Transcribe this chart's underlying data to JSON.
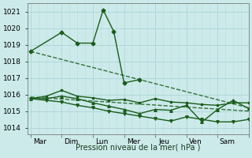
{
  "xlabel": "Pression niveau de la mer( hPa )",
  "background_color": "#cceaea",
  "grid_color": "#b0d8d8",
  "line_color": "#1a5c1a",
  "ylim": [
    1013.6,
    1021.5
  ],
  "xlim": [
    -0.1,
    7.0
  ],
  "day_labels": [
    "Mar",
    "Dim",
    "Lun",
    "Mer",
    "Jeu",
    "Ven",
    "Sam"
  ],
  "day_positions": [
    0.3,
    1.3,
    2.3,
    3.3,
    4.3,
    5.3,
    6.3
  ],
  "day_vlines": [
    0.0,
    1.0,
    2.0,
    3.0,
    4.0,
    5.0,
    6.0,
    7.0
  ],
  "yticks": [
    1014,
    1015,
    1016,
    1017,
    1018,
    1019,
    1020,
    1021
  ],
  "series1_x": [
    0.0,
    1.0,
    1.5,
    2.0,
    2.33,
    2.67,
    3.0,
    3.5
  ],
  "series1_y": [
    1018.6,
    1019.75,
    1019.1,
    1019.1,
    1021.1,
    1019.8,
    1016.7,
    1016.9
  ],
  "trend1_x": [
    0.0,
    7.0
  ],
  "trend1_y": [
    1018.6,
    1015.2
  ],
  "series2_x": [
    0.0,
    0.5,
    1.0,
    1.5,
    2.0,
    2.5,
    3.0,
    3.5,
    4.0,
    4.5,
    5.0,
    5.5,
    6.0,
    6.5,
    7.0
  ],
  "series2_y": [
    1015.75,
    1015.9,
    1016.25,
    1015.9,
    1015.8,
    1015.65,
    1015.7,
    1015.5,
    1015.75,
    1015.55,
    1015.5,
    1015.4,
    1015.35,
    1015.5,
    1015.5
  ],
  "trend2_x": [
    0.0,
    7.0
  ],
  "trend2_y": [
    1015.85,
    1015.0
  ],
  "series3_x": [
    0.0,
    0.5,
    1.0,
    1.5,
    2.0,
    2.5,
    3.0,
    3.5,
    4.0,
    4.5,
    5.0,
    5.5,
    6.0,
    6.5,
    7.0
  ],
  "series3_y": [
    1015.75,
    1015.65,
    1015.55,
    1015.35,
    1015.2,
    1015.0,
    1014.85,
    1014.7,
    1014.55,
    1014.4,
    1014.65,
    1014.5,
    1014.35,
    1014.35,
    1014.5
  ],
  "series4_x": [
    0.0,
    0.5,
    1.0,
    1.5,
    2.0,
    2.5,
    3.0,
    3.5,
    4.0,
    4.5,
    5.0,
    5.5,
    6.0,
    6.5,
    7.0
  ],
  "series4_y": [
    1015.75,
    1015.75,
    1015.9,
    1015.75,
    1015.5,
    1015.3,
    1015.1,
    1014.85,
    1015.1,
    1015.05,
    1015.35,
    1014.35,
    1015.1,
    1015.65,
    1015.15
  ],
  "subgrid_lines": 4
}
